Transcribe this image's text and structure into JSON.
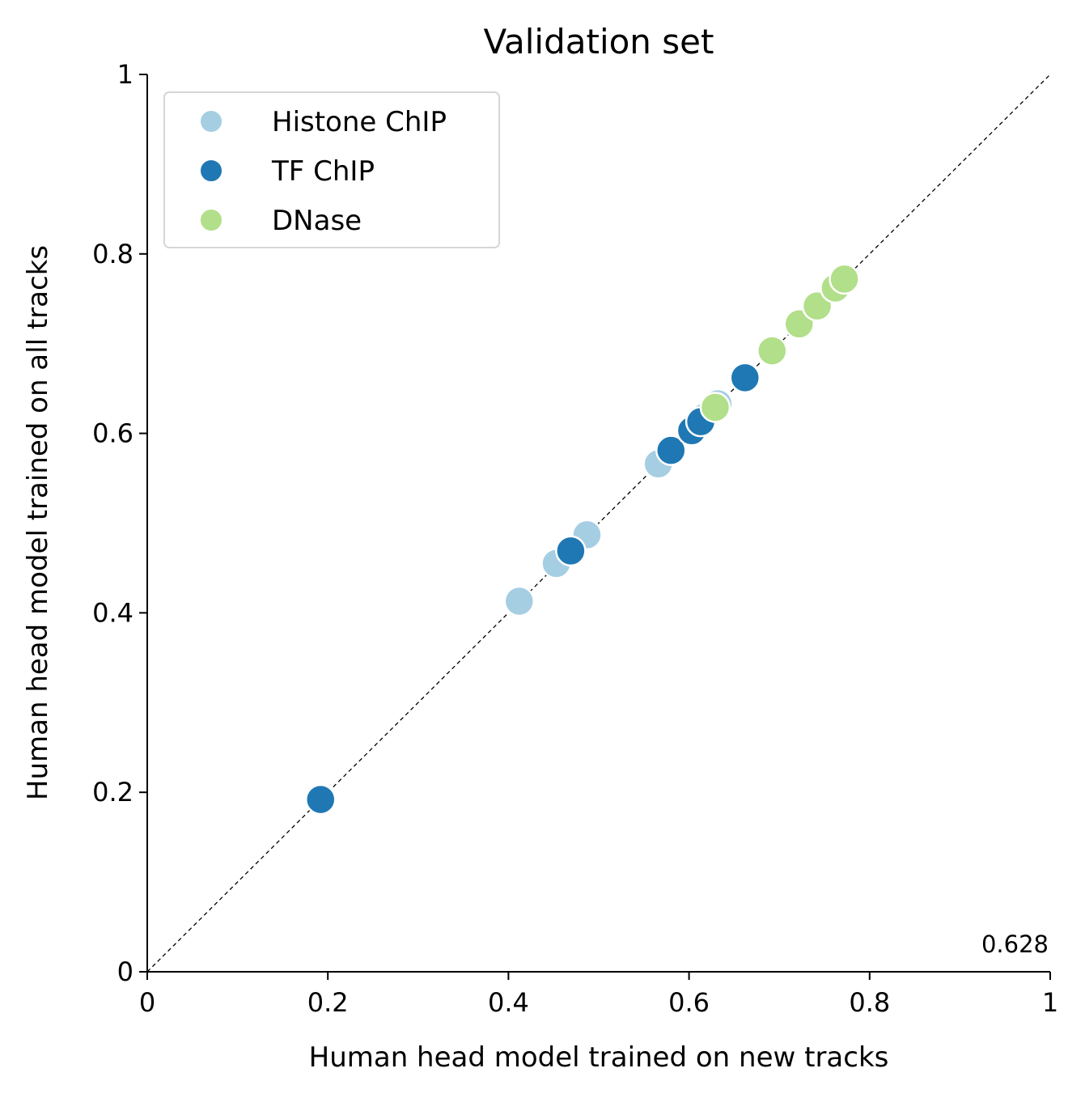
{
  "chart_data": {
    "type": "scatter",
    "title": "Validation set",
    "xlabel": "Human head model trained on new tracks",
    "ylabel": "Human head model trained on all tracks",
    "xlim": [
      0,
      1
    ],
    "ylim": [
      0,
      1
    ],
    "xticks": [
      {
        "value": 0,
        "label": "0"
      },
      {
        "value": 0.2,
        "label": "0.2"
      },
      {
        "value": 0.4,
        "label": "0.4"
      },
      {
        "value": 0.6,
        "label": "0.6"
      },
      {
        "value": 0.8,
        "label": "0.8"
      },
      {
        "value": 1,
        "label": "1"
      }
    ],
    "yticks": [
      {
        "value": 0,
        "label": "0"
      },
      {
        "value": 0.2,
        "label": "0.2"
      },
      {
        "value": 0.4,
        "label": "0.4"
      },
      {
        "value": 0.6,
        "label": "0.6"
      },
      {
        "value": 0.8,
        "label": "0.8"
      },
      {
        "value": 1,
        "label": "1"
      }
    ],
    "grid": false,
    "legend_position": "top-left",
    "diagonal_reference_line": true,
    "annotation": "0.628",
    "series": [
      {
        "name": "Histone ChIP",
        "color": "#a6cee3",
        "points": [
          {
            "x": 0.412,
            "y": 0.413
          },
          {
            "x": 0.453,
            "y": 0.455
          },
          {
            "x": 0.487,
            "y": 0.487
          },
          {
            "x": 0.566,
            "y": 0.566
          },
          {
            "x": 0.617,
            "y": 0.618
          },
          {
            "x": 0.632,
            "y": 0.633
          }
        ]
      },
      {
        "name": "TF ChIP",
        "color": "#1f78b4",
        "points": [
          {
            "x": 0.192,
            "y": 0.192
          },
          {
            "x": 0.469,
            "y": 0.469
          },
          {
            "x": 0.58,
            "y": 0.581
          },
          {
            "x": 0.603,
            "y": 0.603
          },
          {
            "x": 0.613,
            "y": 0.613
          },
          {
            "x": 0.662,
            "y": 0.662
          }
        ]
      },
      {
        "name": "DNase",
        "color": "#b2df8a",
        "points": [
          {
            "x": 0.629,
            "y": 0.629
          },
          {
            "x": 0.692,
            "y": 0.692
          },
          {
            "x": 0.722,
            "y": 0.722
          },
          {
            "x": 0.742,
            "y": 0.742
          },
          {
            "x": 0.762,
            "y": 0.762
          },
          {
            "x": 0.772,
            "y": 0.772
          }
        ]
      }
    ]
  }
}
